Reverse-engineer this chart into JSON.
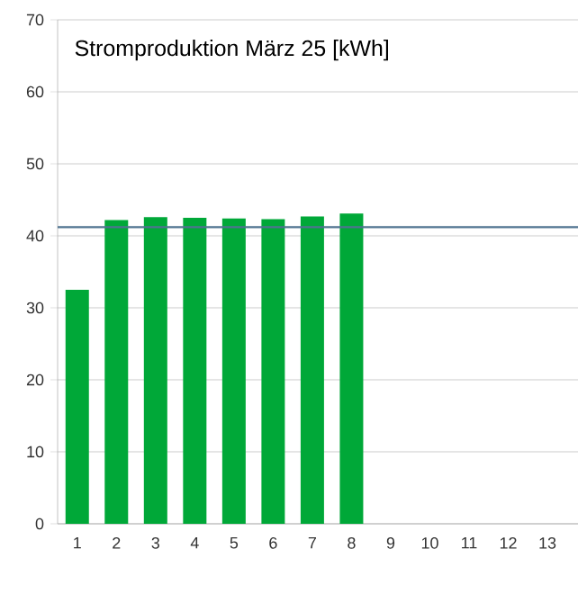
{
  "chart_data": {
    "type": "bar",
    "title": "Stromproduktion März 25 [kWh]",
    "categories": [
      "1",
      "2",
      "3",
      "4",
      "5",
      "6",
      "7",
      "8",
      "9",
      "10",
      "11",
      "12",
      "13"
    ],
    "values": [
      32.5,
      42.2,
      42.6,
      42.5,
      42.4,
      42.3,
      42.7,
      43.1,
      null,
      null,
      null,
      null,
      null
    ],
    "color": "#00a838",
    "ylim": [
      0,
      70
    ],
    "yticks": [
      0,
      10,
      20,
      30,
      40,
      50,
      60,
      70
    ],
    "grid": "y",
    "ref_lines": [
      {
        "axis": "y",
        "value": 41.2,
        "color": "#4f7390"
      }
    ]
  }
}
